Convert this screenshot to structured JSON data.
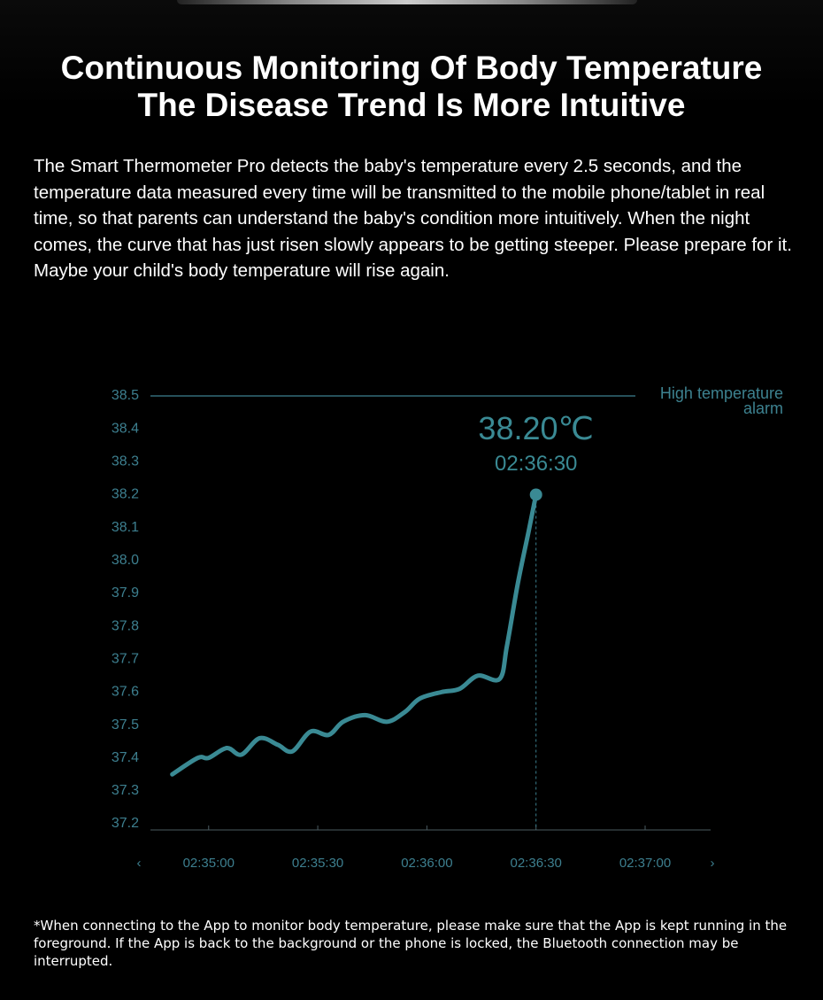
{
  "header": {
    "title_lines": [
      "Continuous Monitoring Of Body Temperature",
      "The Disease Trend Is More Intuitive"
    ],
    "paragraph": "The Smart Thermometer Pro detects the baby's temperature every 2.5 seconds, and the temperature data measured every time will be transmitted to the mobile phone/tablet in real time, so that parents can understand the baby's condition more intuitively. When the night comes, the curve that has just risen slowly appears to be getting steeper. Please prepare for it. Maybe your child's body temperature will rise again."
  },
  "chart_data": {
    "type": "line",
    "x": [
      "02:34:50",
      "02:34:57",
      "02:35:00",
      "02:35:05",
      "02:35:09",
      "02:35:14",
      "02:35:19",
      "02:35:23",
      "02:35:28",
      "02:35:33",
      "02:35:37",
      "02:35:43",
      "02:35:49",
      "02:35:54",
      "02:35:58",
      "02:36:04",
      "02:36:09",
      "02:36:14",
      "02:36:20",
      "02:36:22",
      "02:36:25",
      "02:36:28",
      "02:36:30"
    ],
    "values": [
      37.35,
      37.4,
      37.4,
      37.43,
      37.41,
      37.46,
      37.44,
      37.42,
      37.48,
      37.47,
      37.51,
      37.53,
      37.51,
      37.54,
      37.58,
      37.6,
      37.61,
      37.65,
      37.64,
      37.74,
      37.93,
      38.09,
      38.2
    ],
    "value_labels": [
      null,
      null,
      null,
      null,
      null,
      null,
      null,
      null,
      null,
      null,
      null,
      null,
      null,
      null,
      null,
      null,
      null,
      null,
      null,
      null,
      null,
      null,
      "38.20℃"
    ],
    "color": "#3a8a94",
    "ylim": [
      37.2,
      38.5
    ],
    "yticks": [
      37.2,
      37.3,
      37.4,
      37.5,
      37.6,
      37.7,
      37.8,
      37.9,
      {
        "value": 38,
        "label": "38.0"
      },
      38.1,
      38.2,
      38.3,
      38.4,
      38.5
    ],
    "xlim": [
      "02:34:44",
      "02:37:18"
    ],
    "xticks": [
      "02:35:00",
      "02:35:30",
      "02:36:00",
      "02:36:30",
      "02:37:00"
    ],
    "x_nav": [
      "‹",
      "›"
    ],
    "alarm": {
      "value": 38.5,
      "label": "High temperature alarm"
    }
  },
  "footnote": "*When connecting to the App to monitor body temperature, please make sure that the App is kept running in the foreground. If the App is back to the background or the phone is locked, the Bluetooth connection may be interrupted."
}
